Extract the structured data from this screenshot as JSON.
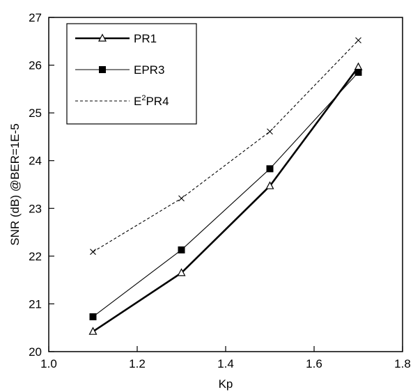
{
  "chart_data": {
    "type": "line",
    "title": "",
    "xlabel": "Kp",
    "ylabel": "SNR (dB) @BER=1E-5",
    "xlim": [
      1.0,
      1.8
    ],
    "ylim": [
      20,
      27
    ],
    "x_ticks": [
      "1.0",
      "1.2",
      "1.4",
      "1.6",
      "1.8"
    ],
    "y_ticks": [
      "20",
      "21",
      "22",
      "23",
      "24",
      "25",
      "26",
      "27"
    ],
    "grid": false,
    "legend_position": "top-left",
    "series": [
      {
        "name": "PR1",
        "marker": "triangle-open",
        "line": "solid-thick",
        "x": [
          1.1,
          1.3,
          1.5,
          1.7
        ],
        "y": [
          20.42,
          21.65,
          23.47,
          25.96
        ]
      },
      {
        "name": "EPR3",
        "marker": "square-filled",
        "line": "solid-thin",
        "x": [
          1.1,
          1.3,
          1.5,
          1.7
        ],
        "y": [
          20.73,
          22.13,
          23.83,
          25.85
        ]
      },
      {
        "name": "E2PR4",
        "name_prefix": "E",
        "name_superscript": "2",
        "name_suffix": "PR4",
        "marker": "x",
        "line": "dashed",
        "x": [
          1.1,
          1.3,
          1.5,
          1.7
        ],
        "y": [
          22.09,
          23.21,
          24.61,
          26.52
        ]
      }
    ]
  }
}
